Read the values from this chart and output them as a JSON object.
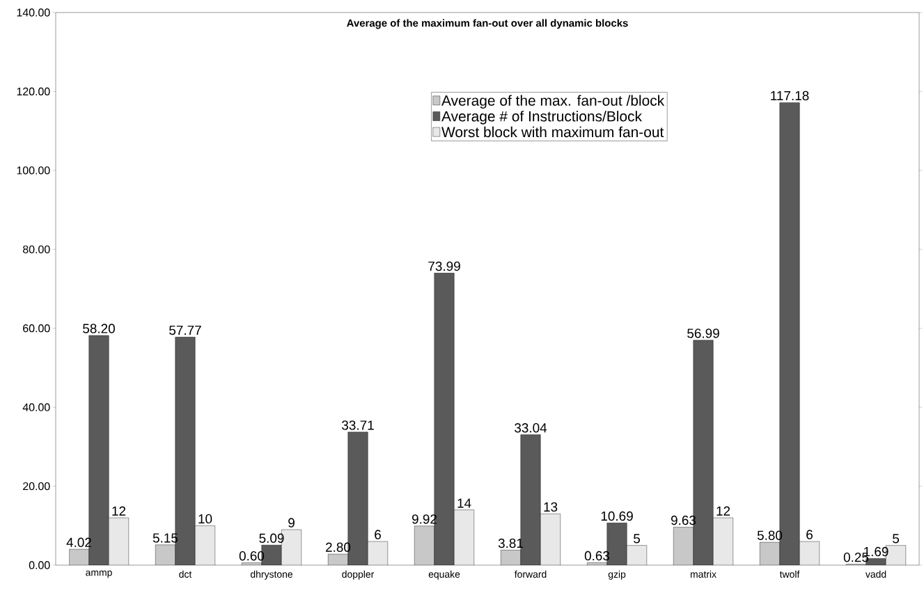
{
  "chart_data": {
    "type": "bar",
    "title": "Average of the maximum fan-out over all dynamic blocks",
    "categories": [
      "ammp",
      "dct",
      "dhrystone",
      "doppler",
      "equake",
      "forward",
      "gzip",
      "matrix",
      "twolf",
      "vadd"
    ],
    "series": [
      {
        "name": "Average of the max. fan-out /block",
        "color": "#c8c8c8",
        "values": [
          4.02,
          5.15,
          0.6,
          2.8,
          9.92,
          3.81,
          0.63,
          9.63,
          5.8,
          0.25
        ],
        "value_labels": [
          "4.02",
          "5.15",
          "0.60",
          "2.80",
          "9.92",
          "3.81",
          "0.63",
          "9.63",
          "5.80",
          "0.25"
        ]
      },
      {
        "name": "Average # of Instructions/Block",
        "color": "#5a5a5a",
        "values": [
          58.2,
          57.77,
          5.09,
          33.71,
          73.99,
          33.04,
          10.69,
          56.99,
          117.18,
          1.69
        ],
        "value_labels": [
          "58.20",
          "57.77",
          "5.09",
          "33.71",
          "73.99",
          "33.04",
          "10.69",
          "56.99",
          "117.18",
          "1.69"
        ]
      },
      {
        "name": "Worst block with maximum fan-out",
        "color": "#e8e8e8",
        "values": [
          12,
          10,
          9,
          6,
          14,
          13,
          5,
          12,
          6,
          5
        ],
        "value_labels": [
          "12",
          "10",
          "9",
          "6",
          "14",
          "13",
          "5",
          "12",
          "6",
          "5"
        ]
      }
    ],
    "ylim": [
      0,
      140
    ],
    "yticks": [
      {
        "value": 0,
        "label": "0.00"
      },
      {
        "value": 20,
        "label": "20.00"
      },
      {
        "value": 40,
        "label": "40.00"
      },
      {
        "value": 60,
        "label": "60.00"
      },
      {
        "value": 80,
        "label": "80.00"
      },
      {
        "value": 100,
        "label": "100.00"
      },
      {
        "value": 120,
        "label": "120.00"
      },
      {
        "value": 140,
        "label": "140.00"
      }
    ],
    "legend": "top right",
    "grid": false
  }
}
